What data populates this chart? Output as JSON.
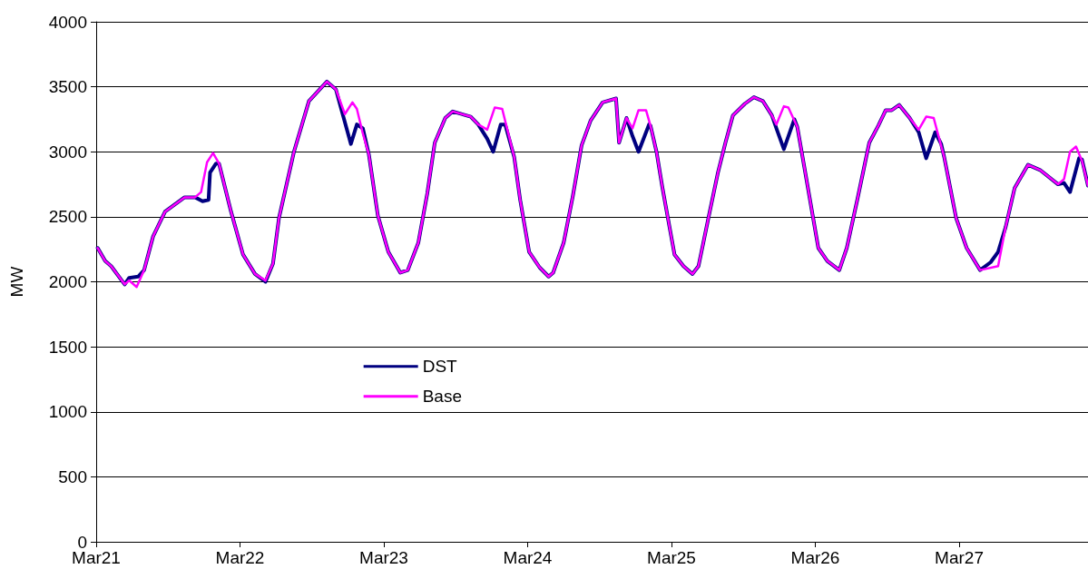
{
  "chart_data": {
    "type": "line",
    "ylabel": "MW",
    "ylim": [
      0,
      4000
    ],
    "yticks": [
      0,
      500,
      1000,
      1500,
      2000,
      2500,
      3000,
      3500,
      4000
    ],
    "xlim": [
      "--03-21",
      "--03-27T21:30"
    ],
    "xticks": [
      {
        "value": "--03-21",
        "label": "Mar21"
      },
      {
        "value": "--03-22",
        "label": "Mar22"
      },
      {
        "value": "--03-23",
        "label": "Mar23"
      },
      {
        "value": "--03-24",
        "label": "Mar24"
      },
      {
        "value": "--03-25",
        "label": "Mar25"
      },
      {
        "value": "--03-26",
        "label": "Mar26"
      },
      {
        "value": "--03-27",
        "label": "Mar27"
      }
    ],
    "grid": "y",
    "legend": "center left",
    "marker": "none",
    "line_style": "solid",
    "series": [
      {
        "name": "DST",
        "color": "#000080",
        "x": [
          "--03-21T00:15",
          "--03-21T01:30",
          "--03-21T02:30",
          "--03-21T04:45",
          "--03-21T05:30",
          "--03-21T07:00",
          "--03-21T08:00",
          "--03-21T09:30",
          "--03-21T11:30",
          "--03-21T14:45",
          "--03-21T16:30",
          "--03-21T17:45",
          "--03-21T18:45",
          "--03-21T19:00",
          "--03-21T20:00",
          "--03-21T20:30",
          "--03-21T22:30",
          "--03-22T00:30",
          "--03-22T02:30",
          "--03-22T04:15",
          "--03-22T05:30",
          "--03-22T06:30",
          "--03-22T09:00",
          "--03-22T11:30",
          "--03-22T14:30",
          "--03-22T16:00",
          "--03-22T17:00",
          "--03-22T18:30",
          "--03-22T19:30",
          "--03-22T20:30",
          "--03-22T21:30",
          "--03-22T23:00",
          "--03-23T00:45",
          "--03-23T02:45",
          "--03-23T04:00",
          "--03-23T05:45",
          "--03-23T07:15",
          "--03-23T08:30",
          "--03-23T10:15",
          "--03-23T11:30",
          "--03-23T14:30",
          "--03-23T15:45",
          "--03-23T17:15",
          "--03-23T18:15",
          "--03-23T19:30",
          "--03-23T20:15",
          "--03-23T21:45",
          "--03-23T22:45",
          "--03-24T00:15",
          "--03-24T02:00",
          "--03-24T03:30",
          "--03-24T04:15",
          "--03-24T06:00",
          "--03-24T07:30",
          "--03-24T09:00",
          "--03-24T10:30",
          "--03-24T12:30",
          "--03-24T14:45",
          "--03-24T15:15",
          "--03-24T16:30",
          "--03-24T17:30",
          "--03-24T18:30",
          "--03-24T20:15",
          "--03-24T20:30",
          "--03-24T21:30",
          "--03-24T22:30",
          "--03-25T00:30",
          "--03-25T02:00",
          "--03-25T03:30",
          "--03-25T04:30",
          "--03-25T06:15",
          "--03-25T07:45",
          "--03-25T09:00",
          "--03-25T10:15",
          "--03-25T12:15",
          "--03-25T13:45",
          "--03-25T15:15",
          "--03-25T16:45",
          "--03-25T17:30",
          "--03-25T18:45",
          "--03-25T20:30",
          "--03-25T21:00",
          "--03-25T22:15",
          "--03-26T00:30",
          "--03-26T02:00",
          "--03-26T04:00",
          "--03-26T05:15",
          "--03-26T07:00",
          "--03-26T09:00",
          "--03-26T10:30",
          "--03-26T11:45",
          "--03-26T12:45",
          "--03-26T14:00",
          "--03-26T15:45",
          "--03-26T17:15",
          "--03-26T18:30",
          "--03-26T20:00",
          "--03-26T21:00",
          "--03-26T21:30",
          "--03-26T23:30",
          "--03-27T01:15",
          "--03-27T03:30",
          "--03-27T05:15",
          "--03-27T06:30",
          "--03-27T07:45",
          "--03-27T09:15",
          "--03-27T11:30",
          "--03-27T13:30",
          "--03-27T16:30",
          "--03-27T17:30",
          "--03-27T18:30",
          "--03-27T20:00",
          "--03-27T20:30",
          "--03-27T21:30"
        ],
        "values": [
          2260,
          2160,
          2120,
          1980,
          2030,
          2040,
          2090,
          2350,
          2540,
          2650,
          2650,
          2620,
          2630,
          2840,
          2910,
          2910,
          2540,
          2210,
          2060,
          2000,
          2140,
          2490,
          3000,
          3390,
          3540,
          3480,
          3310,
          3060,
          3210,
          3180,
          2980,
          2510,
          2230,
          2070,
          2090,
          2300,
          2680,
          3070,
          3260,
          3310,
          3270,
          3210,
          3100,
          3000,
          3210,
          3210,
          2960,
          2630,
          2230,
          2110,
          2040,
          2070,
          2300,
          2650,
          3050,
          3240,
          3380,
          3410,
          3070,
          3260,
          3120,
          3000,
          3210,
          3200,
          3000,
          2720,
          2210,
          2120,
          2060,
          2120,
          2510,
          2840,
          3070,
          3280,
          3370,
          3420,
          3390,
          3280,
          3180,
          3020,
          3250,
          3190,
          2860,
          2260,
          2160,
          2090,
          2260,
          2630,
          3070,
          3200,
          3320,
          3320,
          3360,
          3260,
          3150,
          2950,
          3150,
          3060,
          2960,
          2490,
          2260,
          2090,
          2150,
          2230,
          2420,
          2720,
          2900,
          2860,
          2750,
          2760,
          2690,
          2950,
          2940,
          2740
        ]
      },
      {
        "name": "Base",
        "color": "#ff00ff",
        "x": [
          "--03-21T00:15",
          "--03-21T01:30",
          "--03-21T02:30",
          "--03-21T04:45",
          "--03-21T05:30",
          "--03-21T06:45",
          "--03-21T08:00",
          "--03-21T09:30",
          "--03-21T11:30",
          "--03-21T14:45",
          "--03-21T16:30",
          "--03-21T17:30",
          "--03-21T18:30",
          "--03-21T19:30",
          "--03-21T20:30",
          "--03-21T22:30",
          "--03-22T00:30",
          "--03-22T02:30",
          "--03-22T04:15",
          "--03-22T05:30",
          "--03-22T06:30",
          "--03-22T09:00",
          "--03-22T11:30",
          "--03-22T14:30",
          "--03-22T16:00",
          "--03-22T17:30",
          "--03-22T18:45",
          "--03-22T19:30",
          "--03-22T20:30",
          "--03-22T21:30",
          "--03-22T23:00",
          "--03-23T00:45",
          "--03-23T02:45",
          "--03-23T04:00",
          "--03-23T05:45",
          "--03-23T07:15",
          "--03-23T08:30",
          "--03-23T10:15",
          "--03-23T11:30",
          "--03-23T14:30",
          "--03-23T15:45",
          "--03-23T17:15",
          "--03-23T18:30",
          "--03-23T19:45",
          "--03-23T20:30",
          "--03-23T21:45",
          "--03-23T22:45",
          "--03-24T00:15",
          "--03-24T02:00",
          "--03-24T03:30",
          "--03-24T04:15",
          "--03-24T06:00",
          "--03-24T07:30",
          "--03-24T09:00",
          "--03-24T10:30",
          "--03-24T12:30",
          "--03-24T14:45",
          "--03-24T15:15",
          "--03-24T16:30",
          "--03-24T17:30",
          "--03-24T18:30",
          "--03-24T19:45",
          "--03-24T20:30",
          "--03-24T21:30",
          "--03-24T22:30",
          "--03-25T00:30",
          "--03-25T02:00",
          "--03-25T03:30",
          "--03-25T04:30",
          "--03-25T06:15",
          "--03-25T07:45",
          "--03-25T09:00",
          "--03-25T10:15",
          "--03-25T12:15",
          "--03-25T13:45",
          "--03-25T15:15",
          "--03-25T16:45",
          "--03-25T17:30",
          "--03-25T18:45",
          "--03-25T19:30",
          "--03-25T21:00",
          "--03-25T22:15",
          "--03-26T00:30",
          "--03-26T02:00",
          "--03-26T04:00",
          "--03-26T05:15",
          "--03-26T07:00",
          "--03-26T09:00",
          "--03-26T10:30",
          "--03-26T11:45",
          "--03-26T12:45",
          "--03-26T14:00",
          "--03-26T15:45",
          "--03-26T17:15",
          "--03-26T18:30",
          "--03-26T19:45",
          "--03-26T21:30",
          "--03-26T23:30",
          "--03-27T01:15",
          "--03-27T03:30",
          "--03-27T06:30",
          "--03-27T07:45",
          "--03-27T09:15",
          "--03-27T11:30",
          "--03-27T13:30",
          "--03-27T16:30",
          "--03-27T17:30",
          "--03-27T18:30",
          "--03-27T19:30",
          "--03-27T20:30",
          "--03-27T21:30"
        ],
        "values": [
          2260,
          2160,
          2120,
          1980,
          2010,
          1960,
          2090,
          2350,
          2540,
          2650,
          2650,
          2690,
          2920,
          2990,
          2910,
          2540,
          2210,
          2060,
          2010,
          2140,
          2490,
          3000,
          3390,
          3540,
          3480,
          3290,
          3380,
          3330,
          3140,
          2980,
          2510,
          2230,
          2070,
          2090,
          2300,
          2680,
          3070,
          3260,
          3310,
          3270,
          3210,
          3170,
          3340,
          3330,
          3190,
          2960,
          2630,
          2230,
          2110,
          2040,
          2070,
          2300,
          2650,
          3050,
          3240,
          3380,
          3410,
          3070,
          3260,
          3180,
          3320,
          3320,
          3200,
          3000,
          2720,
          2210,
          2120,
          2060,
          2120,
          2510,
          2840,
          3070,
          3280,
          3370,
          3420,
          3390,
          3280,
          3210,
          3350,
          3340,
          3190,
          2860,
          2260,
          2160,
          2090,
          2260,
          2630,
          3070,
          3200,
          3320,
          3320,
          3360,
          3260,
          3170,
          3270,
          3260,
          2960,
          2490,
          2260,
          2090,
          2120,
          2420,
          2720,
          2900,
          2860,
          2750,
          2790,
          3000,
          3040,
          2930,
          2740
        ]
      }
    ]
  }
}
